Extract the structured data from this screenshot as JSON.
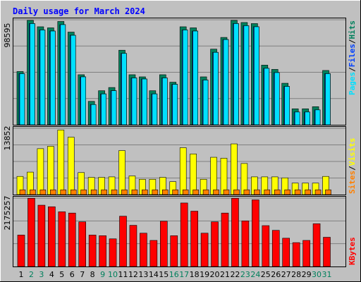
{
  "title": "Daily usage for March 2024",
  "chart_data": [
    {
      "type": "bar",
      "panel": "requests",
      "axis_max_label": "98595",
      "ylim": [
        0,
        98595
      ],
      "grid": true,
      "categories": [
        "1",
        "2",
        "3",
        "4",
        "5",
        "6",
        "7",
        "8",
        "9",
        "10",
        "11",
        "12",
        "13",
        "14",
        "15",
        "16",
        "17",
        "18",
        "19",
        "20",
        "21",
        "22",
        "23",
        "24",
        "25",
        "26",
        "27",
        "28",
        "29",
        "30",
        "31"
      ],
      "series": [
        {
          "name": "Hits",
          "values": [
            50000,
            98000,
            92000,
            91000,
            97000,
            87000,
            47000,
            22000,
            32000,
            35000,
            70000,
            47000,
            45000,
            32000,
            47000,
            40000,
            92000,
            91000,
            45000,
            71000,
            82000,
            98000,
            96000,
            95000,
            56000,
            52000,
            39000,
            15000,
            15000,
            17000,
            51000
          ]
        },
        {
          "name": "Files",
          "values": [
            48000,
            95000,
            89000,
            88000,
            94000,
            84000,
            45000,
            19000,
            29000,
            32000,
            67000,
            44000,
            43000,
            29000,
            44000,
            38000,
            89000,
            88000,
            42000,
            68000,
            80000,
            95000,
            93000,
            92000,
            53000,
            49000,
            36000,
            12000,
            12000,
            14000,
            48000
          ]
        },
        {
          "name": "Pages",
          "values": [
            48000,
            95000,
            89000,
            88000,
            94000,
            84000,
            45000,
            19000,
            29000,
            32000,
            67000,
            44000,
            43000,
            29000,
            44000,
            38000,
            89000,
            88000,
            42000,
            68000,
            80000,
            95000,
            93000,
            92000,
            53000,
            49000,
            36000,
            12000,
            12000,
            14000,
            48000
          ]
        }
      ],
      "colors": {
        "Hits": "#00805c",
        "Files": "#0040ff",
        "Pages": "#00e0ff"
      }
    },
    {
      "type": "bar",
      "panel": "visitors",
      "axis_max_label": "13852",
      "ylim": [
        0,
        13852
      ],
      "grid": true,
      "series": [
        {
          "name": "Visits",
          "values": [
            3800,
            4700,
            9600,
            10100,
            13500,
            12000,
            4600,
            3600,
            3600,
            3700,
            9200,
            3900,
            3200,
            3200,
            3600,
            2700,
            9800,
            8500,
            3200,
            7800,
            7600,
            10600,
            6500,
            3700,
            3700,
            3700,
            3500,
            2400,
            2400,
            2400,
            3800
          ]
        },
        {
          "name": "Sites",
          "values": [
            1000,
            1000,
            1000,
            1000,
            1000,
            1000,
            1000,
            1000,
            1000,
            1000,
            1000,
            1000,
            1000,
            1000,
            1000,
            1000,
            1000,
            1000,
            1000,
            1000,
            1000,
            1000,
            1000,
            1000,
            1000,
            1000,
            1000,
            1000,
            1000,
            1000,
            1000
          ]
        }
      ],
      "colors": {
        "Visits": "#ffff00",
        "Sites": "#ff8000"
      }
    },
    {
      "type": "bar",
      "panel": "kbytes",
      "axis_max_label": "2175257",
      "ylim": [
        0,
        2175257
      ],
      "grid": true,
      "series": [
        {
          "name": "KBytes",
          "values": [
            1000000,
            2170000,
            1950000,
            1900000,
            1740000,
            1700000,
            1420000,
            1000000,
            980000,
            880000,
            1600000,
            1310000,
            1060000,
            830000,
            1440000,
            980000,
            2020000,
            1760000,
            1060000,
            1420000,
            1700000,
            2170000,
            1450000,
            2120000,
            1300000,
            1150000,
            900000,
            760000,
            830000,
            1360000,
            930000
          ]
        }
      ],
      "colors": {
        "KBytes": "#ff0000"
      }
    }
  ],
  "legend": {
    "requests": [
      "Pages",
      "/",
      "Files",
      "/",
      "Hits"
    ],
    "visitors": [
      "Sites",
      "/",
      "Visits"
    ],
    "kbytes": [
      "KBytes"
    ]
  },
  "weekend_days": [
    2,
    3,
    9,
    10,
    16,
    17,
    23,
    24,
    30,
    31
  ],
  "colors": {
    "title": "#0000ff",
    "plot_bg": "#c0c0c0",
    "page_bg": "#c0c0c0",
    "weekday_label": "#000000",
    "weekend_label": "#00805c"
  }
}
